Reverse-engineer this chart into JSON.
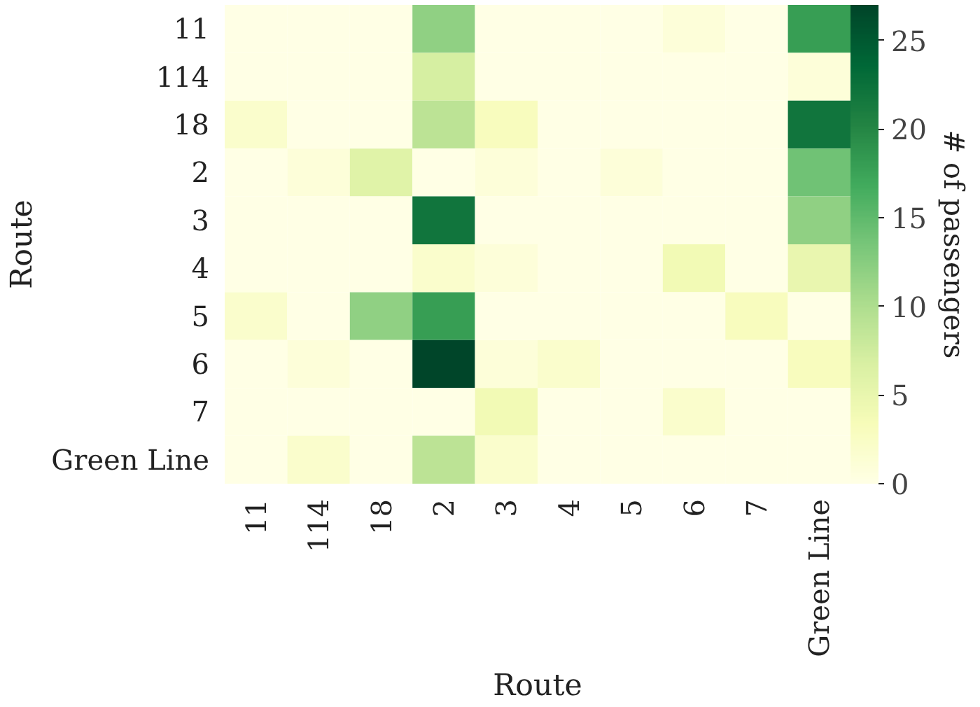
{
  "chart_data": {
    "type": "heatmap",
    "xlabel": "Route",
    "ylabel": "Route",
    "clabel": "# of passengers",
    "categories": [
      "11",
      "114",
      "18",
      "2",
      "3",
      "4",
      "5",
      "6",
      "7",
      "Green Line"
    ],
    "y_categories": [
      "11",
      "114",
      "18",
      "2",
      "3",
      "4",
      "5",
      "6",
      "7",
      "Green Line"
    ],
    "cells": [
      [
        0,
        0,
        0,
        12,
        0,
        0,
        0,
        1,
        0,
        18
      ],
      [
        0,
        0,
        0,
        7,
        0,
        0,
        0,
        0,
        0,
        1
      ],
      [
        2,
        0,
        0,
        9,
        3,
        0,
        0,
        0,
        0,
        22
      ],
      [
        0,
        1,
        6,
        0,
        1,
        0,
        1,
        0,
        0,
        14
      ],
      [
        0,
        0,
        0,
        22,
        0,
        0,
        0,
        0,
        0,
        12
      ],
      [
        0,
        0,
        0,
        2,
        1,
        0,
        0,
        4,
        0,
        5
      ],
      [
        2,
        0,
        12,
        18,
        0,
        0,
        0,
        0,
        3,
        0
      ],
      [
        0,
        1,
        0,
        27,
        1,
        2,
        0,
        0,
        0,
        3
      ],
      [
        0,
        0,
        0,
        0,
        4,
        0,
        0,
        2,
        0,
        0
      ],
      [
        0,
        2,
        0,
        9,
        2,
        0,
        0,
        0,
        0,
        0
      ]
    ],
    "clim": [
      0,
      27
    ],
    "cticks": [
      0,
      5,
      10,
      15,
      20,
      25
    ],
    "grid": false
  }
}
